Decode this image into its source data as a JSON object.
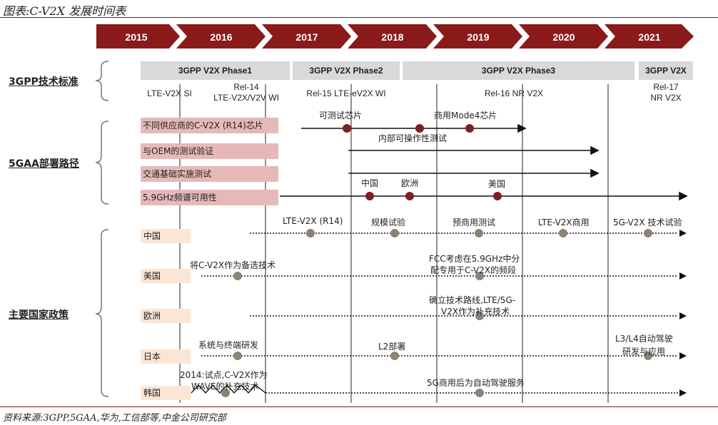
{
  "title": "图表:C-V2X 发展时间表",
  "source": "资料来源:3GPP,5GAA,华为,工信部等,中金公司研究部",
  "years": [
    "2015",
    "2016",
    "2017",
    "2018",
    "2019",
    "2020",
    "2021"
  ],
  "categories": {
    "std": "3GPP技术标准",
    "gaa": "5GAA部署路径",
    "policy": "主要国家政策"
  },
  "phases": [
    "3GPP V2X Phase1",
    "3GPP V2X Phase2",
    "3GPP V2X Phase3",
    "3GPP V2X"
  ],
  "releases": {
    "r1": "LTE-V2X SI",
    "r2a": "Rel-14",
    "r2b": "LTE-V2X/V2V WI",
    "r3": "Rel-15 LTE-eV2X WI",
    "r4": "Rel-16 NR V2X",
    "r5a": "Rel-17",
    "r5b": "NR V2X"
  },
  "gaa": {
    "rows": [
      "不同供应商的C-V2X (R14)芯片",
      "与OEM的测试验证",
      "交通基础实施测试",
      "5.9GHz频谱可用性"
    ],
    "notes": {
      "testable": "可测试芯片",
      "mode4": "商用Mode4芯片",
      "interop": "内部可操作性测试",
      "china": "中国",
      "europe": "欧洲",
      "usa": "美国"
    }
  },
  "policy": {
    "countries": [
      "中国",
      "美国",
      "欧洲",
      "日本",
      "韩国"
    ],
    "china": [
      "LTE-V2X (R14)",
      "规模试验",
      "预商用测试",
      "LTE-V2X商用",
      "5G-V2X 技术试验"
    ],
    "usa": [
      "将C-V2X作为备选技术",
      "FCC考虑在5.9GHz中分",
      "配专用于C-V2X的频段"
    ],
    "europe": [
      "确立技术路线,LTE/5G-",
      "V2X作为补充技术"
    ],
    "japan": [
      "系统与终端研发",
      "L2部署",
      "L3/L4自动驾驶",
      "研发与应用"
    ],
    "korea": [
      "2014:试点,C-V2X作为",
      "WAVE的补充技术",
      "5G商用后为自动驾驶服务"
    ]
  },
  "colors": {
    "banner": "#8b1a1a",
    "gaa_box": "#e6b9b8",
    "country_box": "#fbe6d5",
    "marker_red": "#7f1f22",
    "marker_grey": "#8c8276",
    "phase_box": "#d9d9d9"
  }
}
